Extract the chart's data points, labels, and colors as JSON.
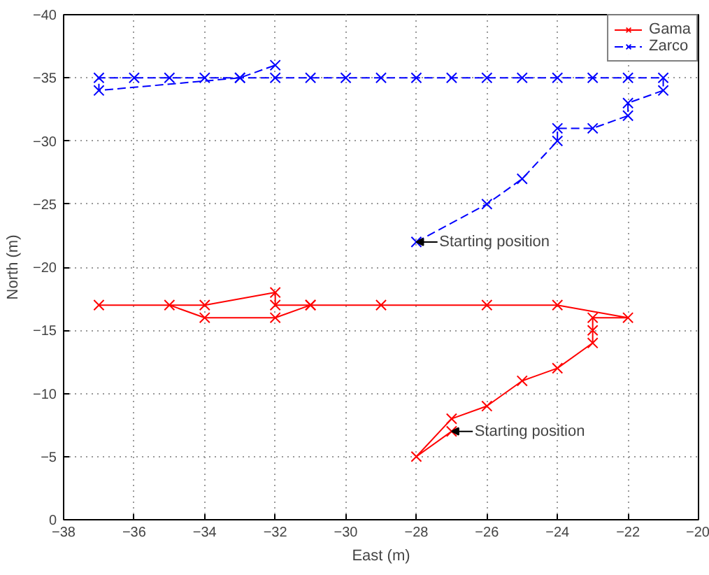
{
  "chart_data": {
    "type": "line",
    "xlabel": "East (m)",
    "ylabel": "North (m)",
    "xlim": [
      -38,
      -20
    ],
    "ylim": [
      0,
      -40
    ],
    "xticks": [
      -38,
      -36,
      -34,
      -32,
      -30,
      -28,
      -26,
      -24,
      -22,
      -20
    ],
    "yticks": [
      0,
      -5,
      -10,
      -15,
      -20,
      -25,
      -30,
      -35,
      -40
    ],
    "grid": true,
    "legend": "top right",
    "marker": "cross",
    "series": [
      {
        "name": "Gama",
        "color": "#ff0000",
        "line_style": "solid",
        "x": [
          -27,
          -28,
          -27,
          -26,
          -25,
          -24,
          -23,
          -23,
          -23,
          -22,
          -24,
          -26,
          -29,
          -31,
          -32,
          -34,
          -35,
          -37,
          -34,
          -32,
          -32,
          -31
        ],
        "values": [
          -7,
          -5,
          -8,
          -9,
          -11,
          -12,
          -14,
          -15,
          -16,
          -16,
          -17,
          -17,
          -17,
          -17,
          -16,
          -16,
          -17,
          -17,
          -17,
          -18,
          -17,
          -17
        ]
      },
      {
        "name": "Zarco",
        "color": "#0000ff",
        "line_style": "dashed",
        "x": [
          -28,
          -26,
          -25,
          -24,
          -24,
          -23,
          -22,
          -22,
          -21,
          -21,
          -22,
          -23,
          -24,
          -25,
          -26,
          -27,
          -28,
          -29,
          -30,
          -31,
          -32,
          -33,
          -34,
          -35,
          -36,
          -37,
          -37,
          -33,
          -32
        ],
        "values": [
          -22,
          -25,
          -27,
          -30,
          -31,
          -31,
          -32,
          -33,
          -34,
          -35,
          -35,
          -35,
          -35,
          -35,
          -35,
          -35,
          -35,
          -35,
          -35,
          -35,
          -35,
          -35,
          -35,
          -35,
          -35,
          -35,
          -34,
          -35,
          -36
        ]
      }
    ],
    "annotations": [
      {
        "text": "Starting position",
        "x": -28,
        "y": -22
      },
      {
        "text": "Starting position",
        "x": -27,
        "y": -7
      }
    ]
  }
}
